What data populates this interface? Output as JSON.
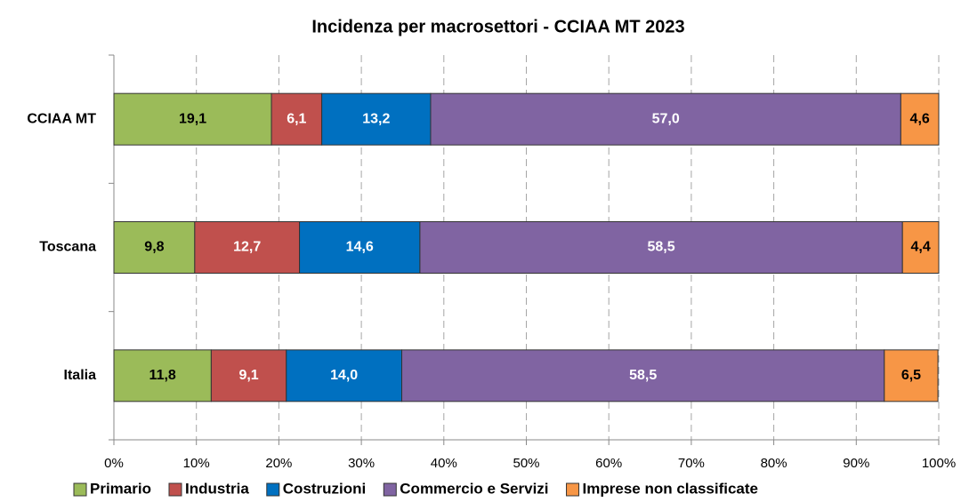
{
  "chart_data": {
    "type": "stacked_bar_horizontal",
    "title": "Incidenza per macrosettori - CCIAA MT 2023",
    "categories": [
      "CCIAA MT",
      "Toscana",
      "Italia"
    ],
    "series": [
      {
        "name": "Primario",
        "color": "#9bbb59",
        "label_color": "#000000",
        "values": [
          19.1,
          9.8,
          11.8
        ],
        "value_labels": [
          "19,1",
          "9,8",
          "11,8"
        ]
      },
      {
        "name": "Industria",
        "color": "#c0504d",
        "label_color": "#ffffff",
        "values": [
          6.1,
          12.7,
          9.1
        ],
        "value_labels": [
          "6,1",
          "12,7",
          "9,1"
        ]
      },
      {
        "name": "Costruzioni",
        "color": "#0070c0",
        "label_color": "#ffffff",
        "values": [
          13.2,
          14.6,
          14.0
        ],
        "value_labels": [
          "13,2",
          "14,6",
          "14,0"
        ]
      },
      {
        "name": "Commercio e Servizi",
        "color": "#8064a2",
        "label_color": "#ffffff",
        "values": [
          57.0,
          58.5,
          58.5
        ],
        "value_labels": [
          "57,0",
          "58,5",
          "58,5"
        ]
      },
      {
        "name": "Imprese non classificate",
        "color": "#f79646",
        "label_color": "#000000",
        "values": [
          4.6,
          4.4,
          6.5
        ],
        "value_labels": [
          "4,6",
          "4,4",
          "6,5"
        ]
      }
    ],
    "xlim": [
      0,
      100
    ],
    "xticks": [
      {
        "value": 0,
        "label": "0%"
      },
      {
        "value": 10,
        "label": "10%"
      },
      {
        "value": 20,
        "label": "20%"
      },
      {
        "value": 30,
        "label": "30%"
      },
      {
        "value": 40,
        "label": "40%"
      },
      {
        "value": 50,
        "label": "50%"
      },
      {
        "value": 60,
        "label": "60%"
      },
      {
        "value": 70,
        "label": "70%"
      },
      {
        "value": 80,
        "label": "80%"
      },
      {
        "value": 90,
        "label": "90%"
      },
      {
        "value": 100,
        "label": "100%"
      }
    ],
    "grid": true,
    "legend": "bottom"
  }
}
